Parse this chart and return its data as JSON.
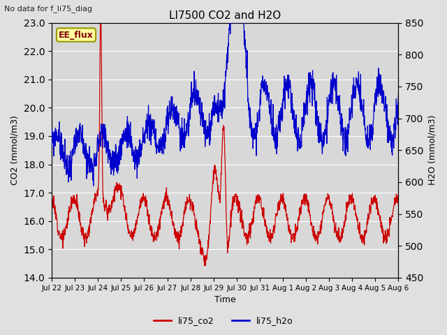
{
  "title": "LI7500 CO2 and H2O",
  "top_left_text": "No data for f_li75_diag",
  "box_label": "EE_flux",
  "xlabel": "Time",
  "ylabel_left": "CO2 (mmol/m3)",
  "ylabel_right": "H2O (mmol/m3)",
  "ylim_left": [
    14.0,
    23.0
  ],
  "ylim_right": [
    450,
    850
  ],
  "legend": [
    "li75_co2",
    "li75_h2o"
  ],
  "legend_colors": [
    "#cc0000",
    "#0000cc"
  ],
  "line_color_co2": "#cc0000",
  "line_color_h2o": "#0000cc",
  "background_color": "#e0e0e0",
  "plot_bg_color": "#d8d8d8",
  "grid_color": "#ffffff",
  "box_bg": "#ffffa0",
  "box_edge": "#999900",
  "figsize": [
    6.4,
    4.8
  ],
  "dpi": 100,
  "xtick_labels": [
    "Jul 22",
    "Jul 23",
    "Jul 24",
    "Jul 25",
    "Jul 26",
    "Jul 27",
    "Jul 28",
    "Jul 29",
    "Jul 30",
    "Jul 31",
    "Aug 1",
    "Aug 2",
    "Aug 3",
    "Aug 4",
    "Aug 5",
    "Aug 6"
  ],
  "xtick_positions": [
    0,
    1,
    2,
    3,
    4,
    5,
    6,
    7,
    8,
    9,
    10,
    11,
    12,
    13,
    14,
    15
  ],
  "yticks_left": [
    14.0,
    15.0,
    16.0,
    17.0,
    18.0,
    19.0,
    20.0,
    21.0,
    22.0,
    23.0
  ],
  "yticks_right": [
    450,
    500,
    550,
    600,
    650,
    700,
    750,
    800,
    850
  ]
}
